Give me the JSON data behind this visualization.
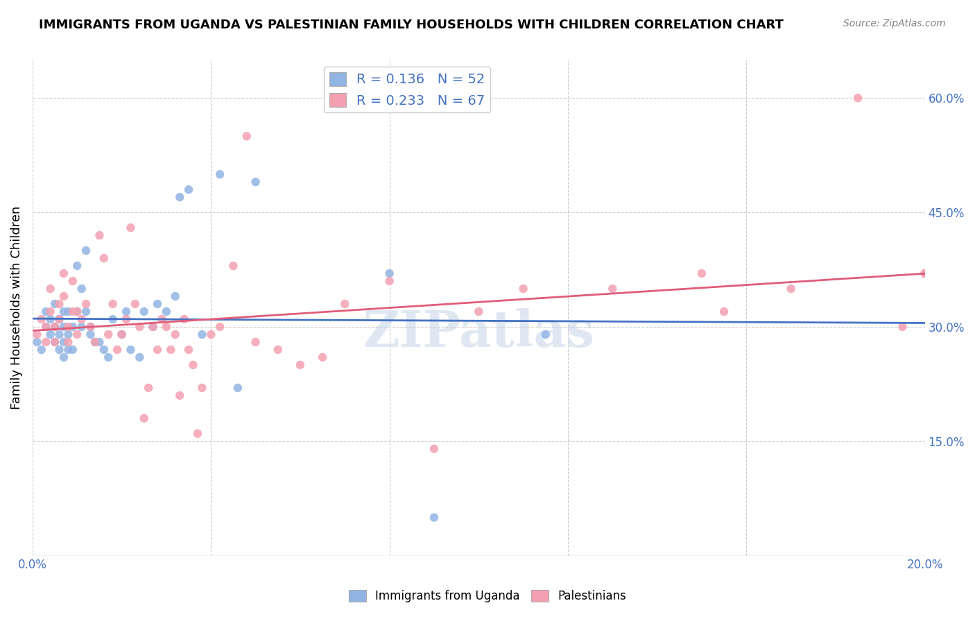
{
  "title": "IMMIGRANTS FROM UGANDA VS PALESTINIAN FAMILY HOUSEHOLDS WITH CHILDREN CORRELATION CHART",
  "source": "Source: ZipAtlas.com",
  "ylabel": "Family Households with Children",
  "xlim": [
    0.0,
    0.2
  ],
  "ylim": [
    0.0,
    0.65
  ],
  "x_tick_positions": [
    0.0,
    0.04,
    0.08,
    0.12,
    0.16,
    0.2
  ],
  "x_tick_labels": [
    "0.0%",
    "",
    "",
    "",
    "",
    "20.0%"
  ],
  "y_tick_positions": [
    0.15,
    0.3,
    0.45,
    0.6
  ],
  "y_tick_labels": [
    "15.0%",
    "30.0%",
    "45.0%",
    "60.0%"
  ],
  "legend_label1": "Immigrants from Uganda",
  "legend_label2": "Palestinians",
  "R1": "0.136",
  "N1": "52",
  "R2": "0.233",
  "N2": "67",
  "color1": "#92b4e3",
  "color2": "#f4a0b0",
  "line_color1": "#4472c4",
  "line_color2": "#e05c7a",
  "background_color": "#ffffff",
  "watermark": "ZIPatlas",
  "text_color": "#4472c4",
  "grid_color": "#cccccc",
  "uganda_x": [
    0.001,
    0.002,
    0.003,
    0.003,
    0.004,
    0.004,
    0.005,
    0.005,
    0.005,
    0.006,
    0.006,
    0.006,
    0.007,
    0.007,
    0.007,
    0.007,
    0.008,
    0.008,
    0.008,
    0.009,
    0.009,
    0.01,
    0.01,
    0.011,
    0.011,
    0.012,
    0.012,
    0.013,
    0.013,
    0.014,
    0.015,
    0.016,
    0.017,
    0.018,
    0.02,
    0.021,
    0.022,
    0.024,
    0.025,
    0.027,
    0.028,
    0.03,
    0.032,
    0.033,
    0.035,
    0.038,
    0.042,
    0.046,
    0.05,
    0.08,
    0.09,
    0.115
  ],
  "uganda_y": [
    0.28,
    0.27,
    0.3,
    0.32,
    0.29,
    0.31,
    0.28,
    0.3,
    0.33,
    0.27,
    0.29,
    0.31,
    0.26,
    0.28,
    0.3,
    0.32,
    0.27,
    0.29,
    0.32,
    0.27,
    0.3,
    0.38,
    0.32,
    0.3,
    0.35,
    0.4,
    0.32,
    0.3,
    0.29,
    0.28,
    0.28,
    0.27,
    0.26,
    0.31,
    0.29,
    0.32,
    0.27,
    0.26,
    0.32,
    0.3,
    0.33,
    0.32,
    0.34,
    0.47,
    0.48,
    0.29,
    0.5,
    0.22,
    0.49,
    0.37,
    0.05,
    0.29
  ],
  "palestinian_x": [
    0.001,
    0.002,
    0.003,
    0.003,
    0.004,
    0.004,
    0.005,
    0.005,
    0.006,
    0.006,
    0.007,
    0.007,
    0.008,
    0.008,
    0.009,
    0.009,
    0.01,
    0.01,
    0.011,
    0.012,
    0.013,
    0.014,
    0.015,
    0.016,
    0.017,
    0.018,
    0.019,
    0.02,
    0.021,
    0.022,
    0.023,
    0.024,
    0.025,
    0.026,
    0.027,
    0.028,
    0.029,
    0.03,
    0.031,
    0.032,
    0.033,
    0.034,
    0.035,
    0.036,
    0.037,
    0.038,
    0.04,
    0.042,
    0.045,
    0.048,
    0.05,
    0.055,
    0.06,
    0.065,
    0.07,
    0.08,
    0.09,
    0.1,
    0.11,
    0.13,
    0.15,
    0.155,
    0.17,
    0.185,
    0.195,
    0.2,
    0.2
  ],
  "palestinian_y": [
    0.29,
    0.31,
    0.28,
    0.3,
    0.35,
    0.32,
    0.3,
    0.28,
    0.33,
    0.31,
    0.34,
    0.37,
    0.3,
    0.28,
    0.32,
    0.36,
    0.29,
    0.32,
    0.31,
    0.33,
    0.3,
    0.28,
    0.42,
    0.39,
    0.29,
    0.33,
    0.27,
    0.29,
    0.31,
    0.43,
    0.33,
    0.3,
    0.18,
    0.22,
    0.3,
    0.27,
    0.31,
    0.3,
    0.27,
    0.29,
    0.21,
    0.31,
    0.27,
    0.25,
    0.16,
    0.22,
    0.29,
    0.3,
    0.38,
    0.55,
    0.28,
    0.27,
    0.25,
    0.26,
    0.33,
    0.36,
    0.14,
    0.32,
    0.35,
    0.35,
    0.37,
    0.32,
    0.35,
    0.6,
    0.3,
    0.37,
    0.37
  ]
}
